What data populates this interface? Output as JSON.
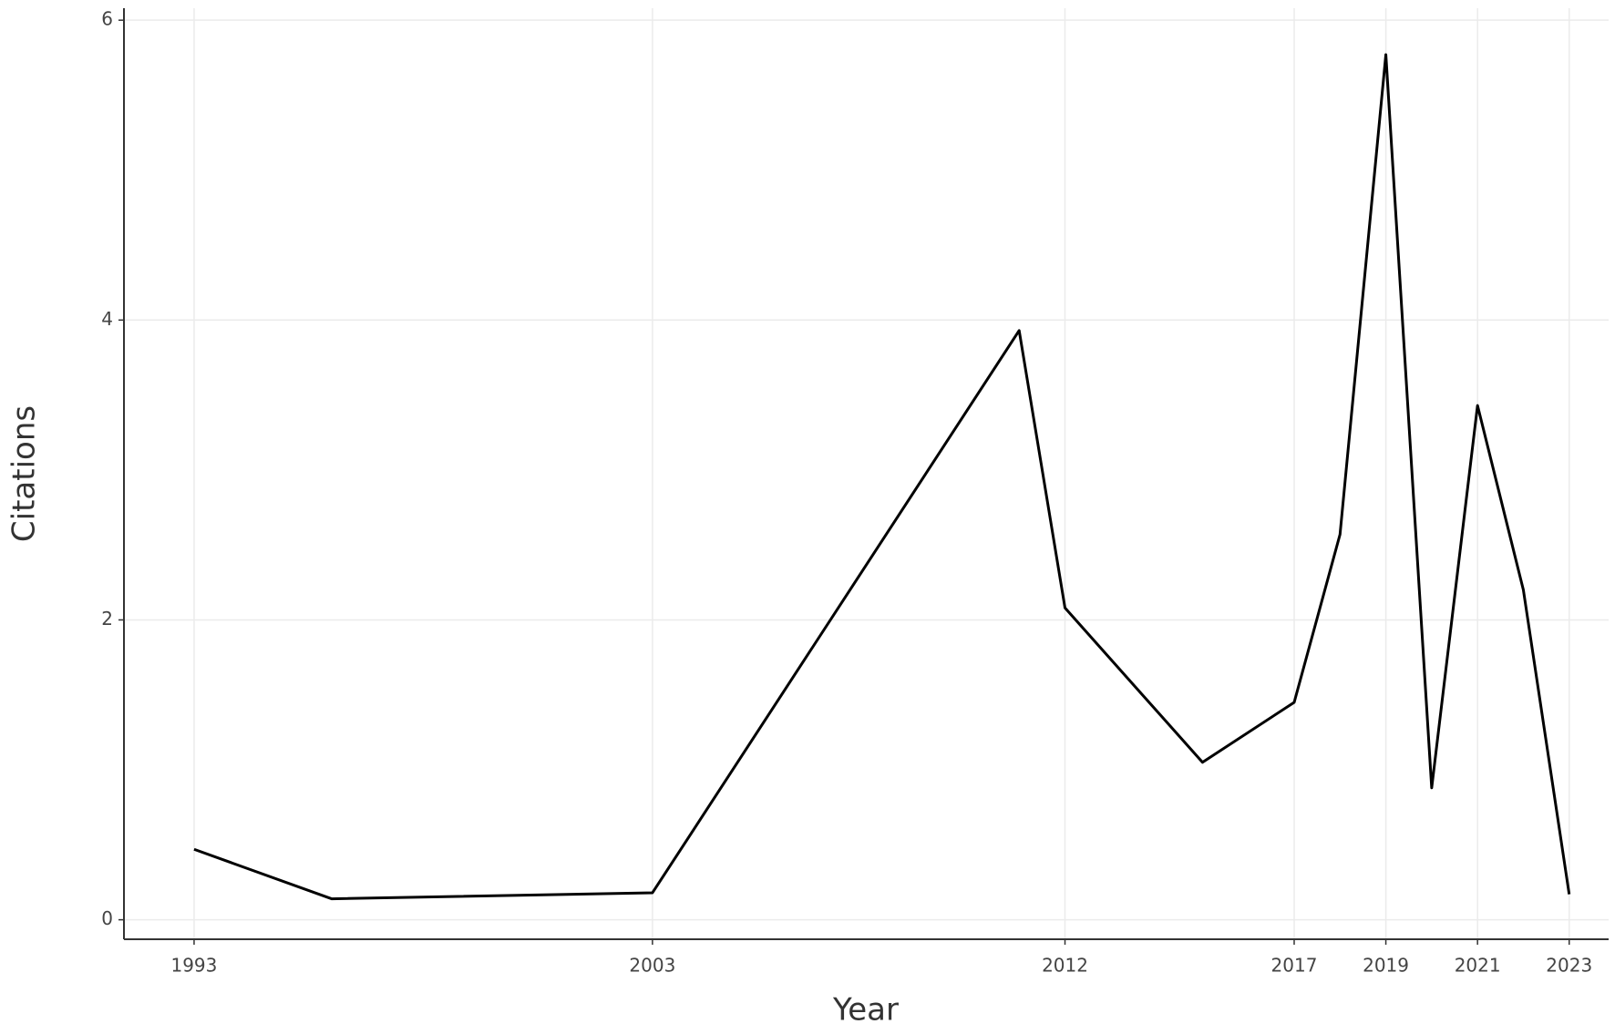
{
  "chart_data": {
    "type": "line",
    "x_label": "Year",
    "y_label": "Citations",
    "x": [
      1993,
      1996,
      2003,
      2011,
      2012,
      2015,
      2017,
      2018,
      2019,
      2020,
      2021,
      2022,
      2023
    ],
    "series": [
      {
        "color": "#000000",
        "values": [
          0.47,
          0.14,
          0.18,
          3.93,
          2.08,
          1.05,
          1.45,
          2.57,
          5.77,
          0.88,
          3.43,
          2.2,
          0.17
        ]
      }
    ],
    "xlim": [
      1991.47,
      2023.86
    ],
    "xticks": [
      1993,
      2003,
      2012,
      2017,
      2019,
      2021,
      2023
    ],
    "ylim": [
      -0.13,
      6.08
    ],
    "yticks": [
      0,
      2,
      4,
      6
    ],
    "grid": true
  }
}
